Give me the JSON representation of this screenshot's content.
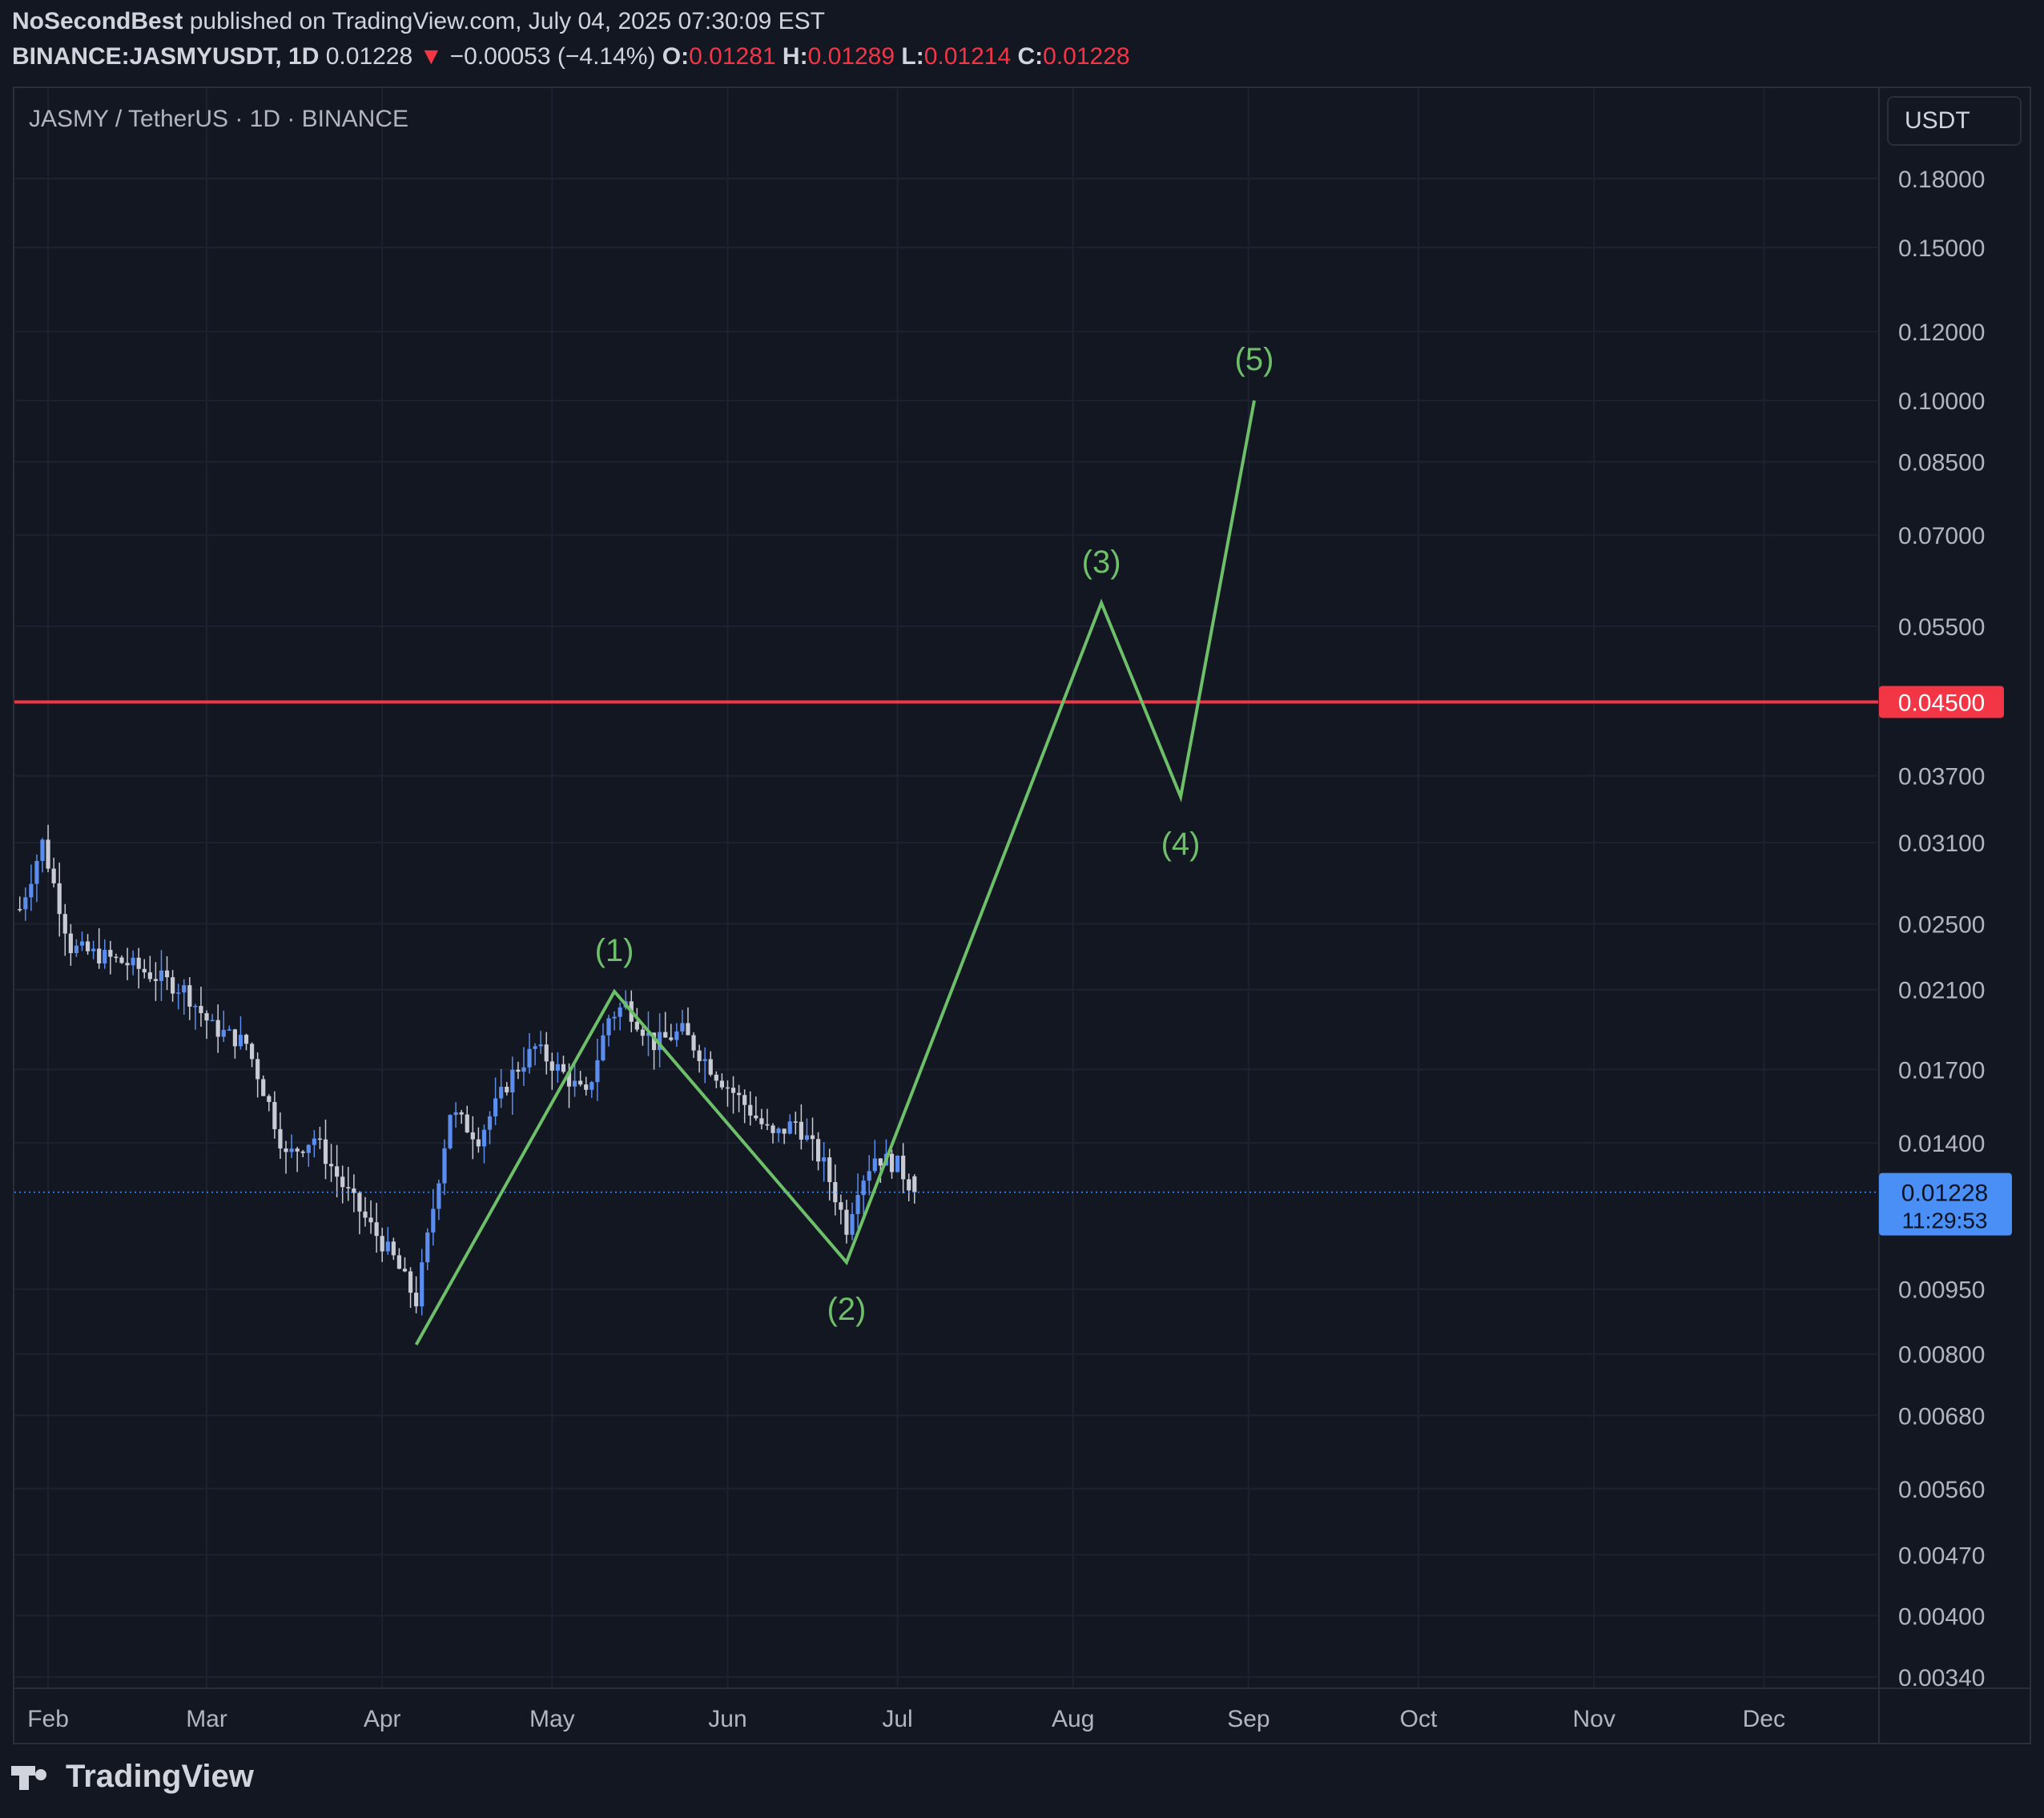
{
  "header": {
    "author": "NoSecondBest",
    "published_text": " published on TradingView.com, July 04, 2025 07:30:09 EST",
    "symbol": "BINANCE:JASMYUSDT, 1D",
    "last": "0.01228",
    "change_arrow": "▼",
    "change": "−0.00053 (−4.14%)",
    "o_label": "O:",
    "o_value": "0.01281",
    "h_label": "H:",
    "h_value": "0.01289",
    "l_label": "L:",
    "l_value": "0.01214",
    "c_label": "C:",
    "c_value": "0.01228"
  },
  "chart_title": "JASMY / TetherUS · 1D · BINANCE",
  "currency_button": "USDT",
  "price_scale": {
    "ticks": [
      "0.18000",
      "0.15000",
      "0.12000",
      "0.10000",
      "0.08500",
      "0.07000",
      "0.05500",
      "0.04500",
      "0.03700",
      "0.03100",
      "0.02500",
      "0.02100",
      "0.01700",
      "0.01400",
      "0.00950",
      "0.00800",
      "0.00680",
      "0.00560",
      "0.00470",
      "0.00400",
      "0.00340"
    ],
    "red_line_label": "0.04500",
    "last_price_label": "0.01228",
    "countdown": "11:29:53"
  },
  "time_scale": [
    "Feb",
    "Mar",
    "Apr",
    "May",
    "Jun",
    "Jul",
    "Aug",
    "Sep",
    "Oct",
    "Nov",
    "Dec"
  ],
  "wave_labels": [
    "(1)",
    "(2)",
    "(3)",
    "(4)",
    "(5)"
  ],
  "footer": {
    "brand": "TradingView"
  },
  "colors": {
    "background": "#131722",
    "up_candle": "#5b8def",
    "down_candle": "#c8cbd4",
    "wave_line": "#6ebf6a",
    "resistance_line": "#f23645",
    "last_price": "#4a8ff5"
  },
  "chart_data": {
    "type": "candlestick",
    "title": "JASMY / TetherUS · 1D · BINANCE",
    "y_scale": "log",
    "ylim": [
      0.0034,
      0.2
    ],
    "x_range": [
      "2025-01-27",
      "2025-12-31"
    ],
    "horizontal_line": {
      "value": 0.045,
      "color": "#f23645"
    },
    "last_price": 0.01228,
    "wave_path": [
      {
        "label": "",
        "date": "2025-04-07",
        "value": 0.0082
      },
      {
        "label": "(1)",
        "date": "2025-05-12",
        "value": 0.0209
      },
      {
        "label": "(2)",
        "date": "2025-06-22",
        "value": 0.0102
      },
      {
        "label": "(3)",
        "date": "2025-08-06",
        "value": 0.0585
      },
      {
        "label": "(4)",
        "date": "2025-08-20",
        "value": 0.035
      },
      {
        "label": "(5)",
        "date": "2025-09-02",
        "value": 0.1
      }
    ],
    "close_path": [
      {
        "date": "2025-01-27",
        "value": 0.026
      },
      {
        "date": "2025-01-31",
        "value": 0.031
      },
      {
        "date": "2025-02-05",
        "value": 0.0235
      },
      {
        "date": "2025-02-15",
        "value": 0.0225
      },
      {
        "date": "2025-02-25",
        "value": 0.021
      },
      {
        "date": "2025-03-02",
        "value": 0.019
      },
      {
        "date": "2025-03-08",
        "value": 0.0182
      },
      {
        "date": "2025-03-12",
        "value": 0.0155
      },
      {
        "date": "2025-03-15",
        "value": 0.0135
      },
      {
        "date": "2025-03-20",
        "value": 0.0142
      },
      {
        "date": "2025-03-25",
        "value": 0.0125
      },
      {
        "date": "2025-03-30",
        "value": 0.0112
      },
      {
        "date": "2025-04-03",
        "value": 0.0103
      },
      {
        "date": "2025-04-07",
        "value": 0.0092
      },
      {
        "date": "2025-04-10",
        "value": 0.0118
      },
      {
        "date": "2025-04-13",
        "value": 0.0152
      },
      {
        "date": "2025-04-18",
        "value": 0.0142
      },
      {
        "date": "2025-04-24",
        "value": 0.0168
      },
      {
        "date": "2025-04-28",
        "value": 0.018
      },
      {
        "date": "2025-05-03",
        "value": 0.0168
      },
      {
        "date": "2025-05-07",
        "value": 0.0158
      },
      {
        "date": "2025-05-11",
        "value": 0.0195
      },
      {
        "date": "2025-05-14",
        "value": 0.0202
      },
      {
        "date": "2025-05-19",
        "value": 0.0182
      },
      {
        "date": "2025-05-24",
        "value": 0.0188
      },
      {
        "date": "2025-05-30",
        "value": 0.0168
      },
      {
        "date": "2025-06-04",
        "value": 0.0155
      },
      {
        "date": "2025-06-09",
        "value": 0.0142
      },
      {
        "date": "2025-06-13",
        "value": 0.0148
      },
      {
        "date": "2025-06-18",
        "value": 0.0132
      },
      {
        "date": "2025-06-22",
        "value": 0.0112
      },
      {
        "date": "2025-06-24",
        "value": 0.0125
      },
      {
        "date": "2025-06-27",
        "value": 0.0135
      },
      {
        "date": "2025-07-01",
        "value": 0.0132
      },
      {
        "date": "2025-07-04",
        "value": 0.01228
      }
    ]
  }
}
